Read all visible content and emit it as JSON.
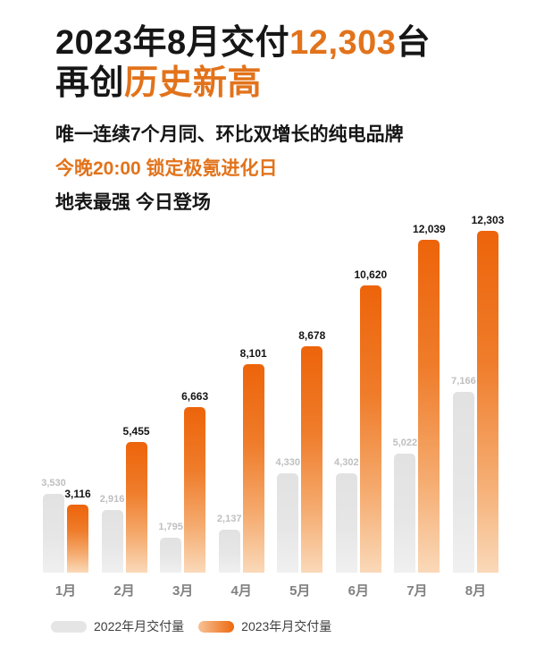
{
  "header": {
    "title_line1_prefix": "2023年8月交付",
    "title_line1_highlight": "12,303",
    "title_line1_suffix": "台",
    "title_line2_prefix": "再创",
    "title_line2_highlight": "历史新高",
    "subtitle1": "唯一连续7个月同、环比双增长的纯电品牌",
    "subtitle2": "今晚20:00 锁定极氪进化日",
    "subtitle3": "地表最强 今日登场"
  },
  "chart_data": {
    "type": "bar",
    "title": "2023年8月交付12,303台 再创历史新高",
    "categories": [
      "1月",
      "2月",
      "3月",
      "4月",
      "5月",
      "6月",
      "7月",
      "8月"
    ],
    "series": [
      {
        "key": "2022",
        "name": "2022年月交付量",
        "color": "#E3E3E3",
        "values": [
          3530,
          2916,
          1795,
          2137,
          4330,
          4302,
          5022,
          7166
        ]
      },
      {
        "key": "2023",
        "name": "2023年月交付量",
        "color": "#ED640A",
        "values": [
          3116,
          5455,
          6663,
          8101,
          8678,
          10620,
          12039,
          12303
        ]
      }
    ],
    "xlabel": "",
    "ylabel": "",
    "ylim": [
      0,
      12303
    ],
    "grid": false,
    "value_labels": true,
    "legend_position": "bottom"
  },
  "colors": {
    "accent_orange": "#E2731B",
    "bar_orange_top": "#ED640A",
    "bar_orange_bottom": "#FAD9B9",
    "bar_gray": "#E3E3E3",
    "value_label_2022": "#BFBFBF",
    "value_label_2023": "#141414",
    "month_label": "#808080",
    "text_black": "#161616",
    "background": "#FFFFFF"
  }
}
